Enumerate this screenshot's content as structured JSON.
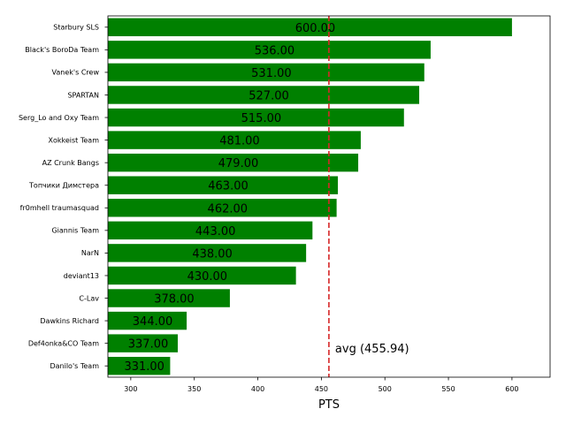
{
  "chart_data": {
    "type": "bar",
    "orientation": "horizontal",
    "categories": [
      "Starbury SLS",
      "Black's BoroDa Team",
      "Vanek's Crew",
      "SPARTAN",
      "Serg_Lo and Oxy Team",
      "Xokkeist Team",
      "AZ Crunk Bangs",
      "Топчики Димстера",
      "fr0mhell traumasquad",
      "Giannis Team",
      "NarN",
      "deviant13",
      "C-Lav",
      "Dawkins Richard",
      "Def4onka&CO Team",
      "Danilo's Team"
    ],
    "values": [
      600,
      536,
      531,
      527,
      515,
      481,
      479,
      463,
      462,
      443,
      438,
      430,
      378,
      344,
      337,
      331
    ],
    "value_labels": [
      "600.00",
      "536.00",
      "531.00",
      "527.00",
      "515.00",
      "481.00",
      "479.00",
      "463.00",
      "462.00",
      "443.00",
      "438.00",
      "430.00",
      "378.00",
      "344.00",
      "337.00",
      "331.00"
    ],
    "xlabel": "PTS",
    "ylabel": "",
    "title": "",
    "xlim": [
      282,
      630
    ],
    "xticks": [
      300,
      350,
      400,
      450,
      500,
      550,
      600
    ],
    "average": 455.94,
    "average_label": "avg (455.94)",
    "colors": {
      "bar": "#008000",
      "average_line": "#d62728",
      "axis": "#000000"
    },
    "grid": false,
    "legend": "none"
  }
}
